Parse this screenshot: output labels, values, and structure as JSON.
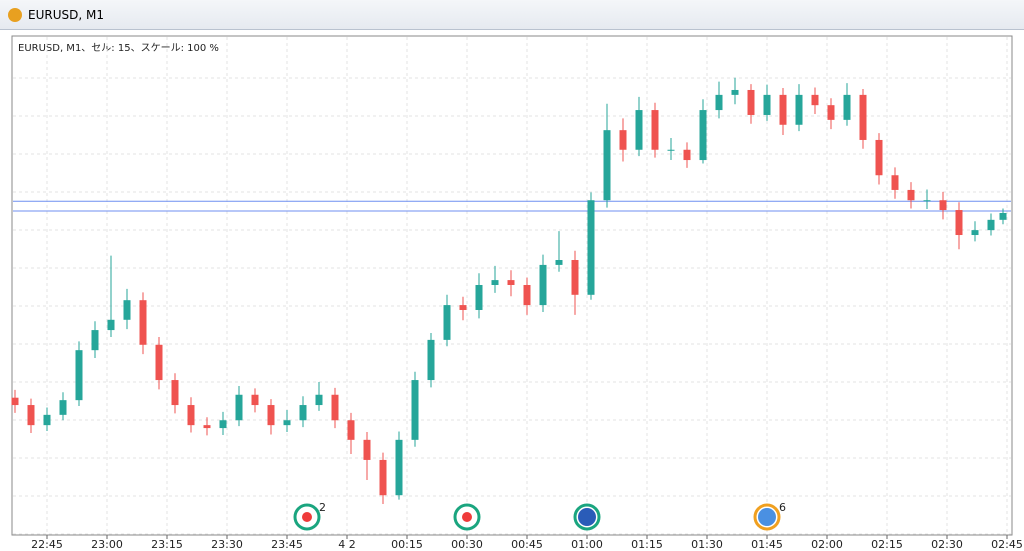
{
  "window_title": "EURUSD, M1",
  "chart_data": {
    "type": "candlestick",
    "label": "EURUSD, M1、セル: 15、スケール: 100 %",
    "x": [
      0,
      4,
      8,
      12,
      16,
      20,
      24,
      28,
      32,
      36,
      40,
      44,
      48,
      52,
      56,
      60,
      64,
      68,
      72,
      76,
      80,
      84,
      88,
      92,
      96,
      100,
      104,
      108,
      112,
      116,
      120,
      124,
      128,
      132,
      136,
      140,
      144,
      148,
      152,
      156,
      160,
      164,
      168,
      172,
      176,
      180,
      184,
      188,
      192,
      196,
      200,
      204,
      208,
      212,
      216,
      220,
      224,
      228,
      232,
      236,
      240,
      244,
      247
    ],
    "open": [
      27.0,
      25.5,
      21.4,
      23.5,
      26.5,
      36.7,
      40.8,
      42.9,
      46.9,
      37.8,
      30.6,
      25.5,
      21.4,
      20.8,
      22.4,
      27.6,
      25.5,
      21.4,
      22.4,
      25.5,
      27.6,
      22.4,
      18.4,
      14.3,
      7.1,
      18.4,
      30.6,
      38.8,
      45.9,
      44.9,
      50.0,
      51.0,
      50.0,
      45.9,
      54.1,
      55.1,
      48.0,
      67.3,
      81.6,
      77.6,
      85.7,
      77.6,
      77.6,
      75.5,
      85.7,
      88.8,
      89.8,
      84.7,
      88.8,
      82.7,
      88.8,
      86.7,
      83.7,
      88.8,
      79.6,
      72.4,
      69.4,
      67.3,
      67.3,
      65.3,
      60.2,
      61.2,
      63.3
    ],
    "high": [
      28.6,
      26.8,
      25.0,
      28.1,
      38.5,
      42.6,
      56.0,
      49.2,
      48.5,
      39.4,
      32.0,
      27.1,
      23.0,
      24.1,
      29.4,
      28.9,
      26.7,
      24.5,
      27.3,
      30.2,
      29.0,
      23.9,
      20.0,
      15.8,
      20.1,
      32.3,
      40.2,
      48.0,
      47.6,
      52.4,
      53.9,
      53.0,
      51.5,
      56.2,
      61.0,
      57.0,
      68.9,
      87.0,
      84.0,
      88.4,
      87.2,
      80.0,
      79.1,
      87.9,
      91.5,
      92.3,
      91.0,
      90.9,
      90.2,
      91.0,
      90.3,
      88.1,
      91.2,
      90.0,
      81.0,
      74.0,
      71.0,
      69.5,
      69.0,
      66.9,
      63.0,
      64.6,
      65.6
    ],
    "low": [
      23.9,
      19.8,
      20.2,
      22.4,
      25.3,
      35.1,
      39.4,
      41.0,
      35.9,
      28.7,
      23.8,
      19.9,
      19.3,
      19.4,
      21.2,
      24.0,
      19.5,
      20.0,
      21.0,
      24.3,
      20.8,
      15.5,
      10.2,
      5.3,
      6.2,
      17.0,
      29.1,
      37.5,
      42.8,
      43.2,
      48.4,
      47.7,
      43.9,
      44.5,
      52.7,
      43.9,
      47.0,
      65.8,
      75.2,
      76.3,
      76.0,
      75.5,
      73.9,
      74.8,
      84.0,
      86.9,
      82.9,
      83.5,
      80.6,
      81.4,
      84.9,
      81.8,
      82.5,
      77.8,
      70.5,
      67.6,
      65.6,
      65.5,
      63.4,
      57.3,
      58.9,
      60.1,
      62.4
    ],
    "close": [
      25.5,
      21.4,
      23.5,
      26.5,
      36.7,
      40.8,
      42.9,
      46.9,
      37.8,
      30.6,
      25.5,
      21.4,
      20.8,
      22.4,
      27.6,
      25.5,
      21.4,
      22.4,
      25.5,
      27.6,
      22.4,
      18.4,
      14.3,
      7.1,
      18.4,
      30.6,
      38.8,
      45.9,
      44.9,
      50.0,
      51.0,
      50.0,
      45.9,
      54.1,
      55.1,
      48.0,
      67.3,
      81.6,
      77.6,
      85.7,
      77.6,
      77.6,
      75.5,
      85.7,
      88.8,
      89.8,
      84.7,
      88.8,
      82.7,
      88.8,
      86.7,
      83.7,
      88.8,
      79.6,
      72.4,
      69.4,
      67.3,
      67.3,
      65.3,
      60.2,
      61.2,
      63.3,
      64.7
    ],
    "up_color": "#26a69a",
    "down_color": "#ef5350",
    "price_lines": [
      67.1,
      65.1
    ],
    "price_line_color": "#6f8ff0",
    "xlim": [
      0,
      250
    ],
    "ylim": [
      0,
      100
    ],
    "xticks": [
      {
        "value": 8,
        "label": "22:45"
      },
      {
        "value": 23,
        "label": "23:00"
      },
      {
        "value": 38,
        "label": "23:15"
      },
      {
        "value": 53,
        "label": "23:30"
      },
      {
        "value": 68,
        "label": "23:45"
      },
      {
        "value": 83,
        "label": "4 2"
      },
      {
        "value": 98,
        "label": "00:15"
      },
      {
        "value": 113,
        "label": "00:30"
      },
      {
        "value": 128,
        "label": "00:45"
      },
      {
        "value": 143,
        "label": "01:00"
      },
      {
        "value": 158,
        "label": "01:15"
      },
      {
        "value": 173,
        "label": "01:30"
      },
      {
        "value": 188,
        "label": "01:45"
      },
      {
        "value": 203,
        "label": "02:00"
      },
      {
        "value": 218,
        "label": "02:15"
      },
      {
        "value": 233,
        "label": "02:30"
      },
      {
        "value": 248,
        "label": "02:45"
      }
    ],
    "events": [
      {
        "x": 73,
        "label": "2"
      },
      {
        "x": 113
      },
      {
        "x": 143
      },
      {
        "x": 188,
        "label": "6"
      }
    ],
    "grid": true
  }
}
